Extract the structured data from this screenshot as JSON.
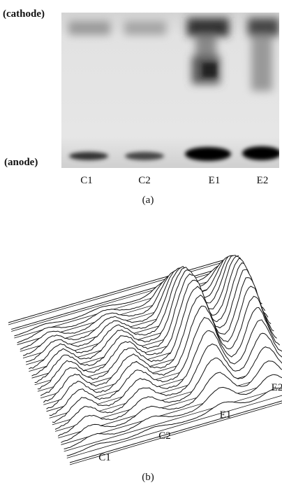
{
  "panel_a": {
    "cathode_label": "(cathode)",
    "anode_label": "(anode)",
    "lanes": [
      "C1",
      "C2",
      "E1",
      "E2"
    ],
    "caption": "(a)"
  },
  "panel_b": {
    "lanes": [
      "C1",
      "C2",
      "E1",
      "E2"
    ],
    "caption": "(b)"
  }
}
